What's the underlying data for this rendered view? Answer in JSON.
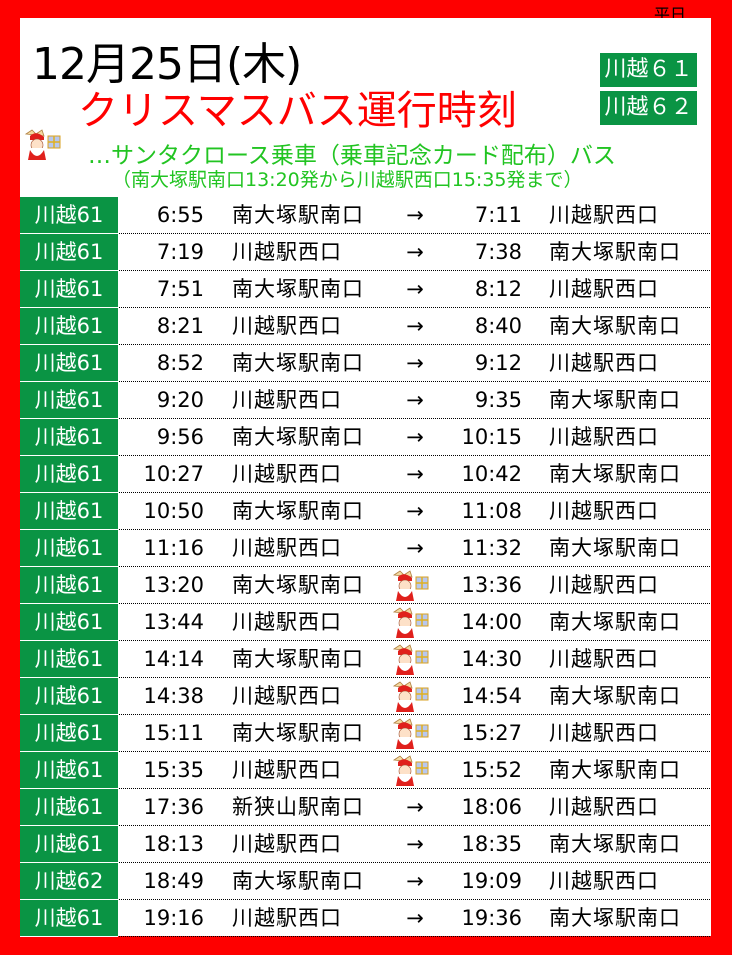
{
  "header": {
    "weekday": "平日",
    "date": "12月25日(木)",
    "title": "クリスマスバス運行時刻",
    "routes": [
      "川越６１",
      "川越６２"
    ],
    "santa_note": "…サンタクロース乗車（乗車記念カード配布）バス",
    "santa_sub": "（南大塚駅南口13:20発から川越駅西口15:35発まで）"
  },
  "colors": {
    "frame": "#fe0000",
    "route_bg": "#0a9444",
    "santa_text": "#22c422",
    "title": "#ff0000"
  },
  "arrow": "→",
  "rows": [
    {
      "route": "川越61",
      "dep": "6:55",
      "from": "南大塚駅南口",
      "arr": "7:11",
      "to": "川越駅西口",
      "santa": false
    },
    {
      "route": "川越61",
      "dep": "7:19",
      "from": "川越駅西口",
      "arr": "7:38",
      "to": "南大塚駅南口",
      "santa": false
    },
    {
      "route": "川越61",
      "dep": "7:51",
      "from": "南大塚駅南口",
      "arr": "8:12",
      "to": "川越駅西口",
      "santa": false
    },
    {
      "route": "川越61",
      "dep": "8:21",
      "from": "川越駅西口",
      "arr": "8:40",
      "to": "南大塚駅南口",
      "santa": false
    },
    {
      "route": "川越61",
      "dep": "8:52",
      "from": "南大塚駅南口",
      "arr": "9:12",
      "to": "川越駅西口",
      "santa": false
    },
    {
      "route": "川越61",
      "dep": "9:20",
      "from": "川越駅西口",
      "arr": "9:35",
      "to": "南大塚駅南口",
      "santa": false
    },
    {
      "route": "川越61",
      "dep": "9:56",
      "from": "南大塚駅南口",
      "arr": "10:15",
      "to": "川越駅西口",
      "santa": false
    },
    {
      "route": "川越61",
      "dep": "10:27",
      "from": "川越駅西口",
      "arr": "10:42",
      "to": "南大塚駅南口",
      "santa": false
    },
    {
      "route": "川越61",
      "dep": "10:50",
      "from": "南大塚駅南口",
      "arr": "11:08",
      "to": "川越駅西口",
      "santa": false
    },
    {
      "route": "川越61",
      "dep": "11:16",
      "from": "川越駅西口",
      "arr": "11:32",
      "to": "南大塚駅南口",
      "santa": false
    },
    {
      "route": "川越61",
      "dep": "13:20",
      "from": "南大塚駅南口",
      "arr": "13:36",
      "to": "川越駅西口",
      "santa": true
    },
    {
      "route": "川越61",
      "dep": "13:44",
      "from": "川越駅西口",
      "arr": "14:00",
      "to": "南大塚駅南口",
      "santa": true
    },
    {
      "route": "川越61",
      "dep": "14:14",
      "from": "南大塚駅南口",
      "arr": "14:30",
      "to": "川越駅西口",
      "santa": true
    },
    {
      "route": "川越61",
      "dep": "14:38",
      "from": "川越駅西口",
      "arr": "14:54",
      "to": "南大塚駅南口",
      "santa": true
    },
    {
      "route": "川越61",
      "dep": "15:11",
      "from": "南大塚駅南口",
      "arr": "15:27",
      "to": "川越駅西口",
      "santa": true
    },
    {
      "route": "川越61",
      "dep": "15:35",
      "from": "川越駅西口",
      "arr": "15:52",
      "to": "南大塚駅南口",
      "santa": true
    },
    {
      "route": "川越61",
      "dep": "17:36",
      "from": "新狭山駅南口",
      "arr": "18:06",
      "to": "川越駅西口",
      "santa": false
    },
    {
      "route": "川越61",
      "dep": "18:13",
      "from": "川越駅西口",
      "arr": "18:35",
      "to": "南大塚駅南口",
      "santa": false
    },
    {
      "route": "川越62",
      "dep": "18:49",
      "from": "南大塚駅南口",
      "arr": "19:09",
      "to": "川越駅西口",
      "santa": false
    },
    {
      "route": "川越61",
      "dep": "19:16",
      "from": "川越駅西口",
      "arr": "19:36",
      "to": "南大塚駅南口",
      "santa": false
    }
  ]
}
